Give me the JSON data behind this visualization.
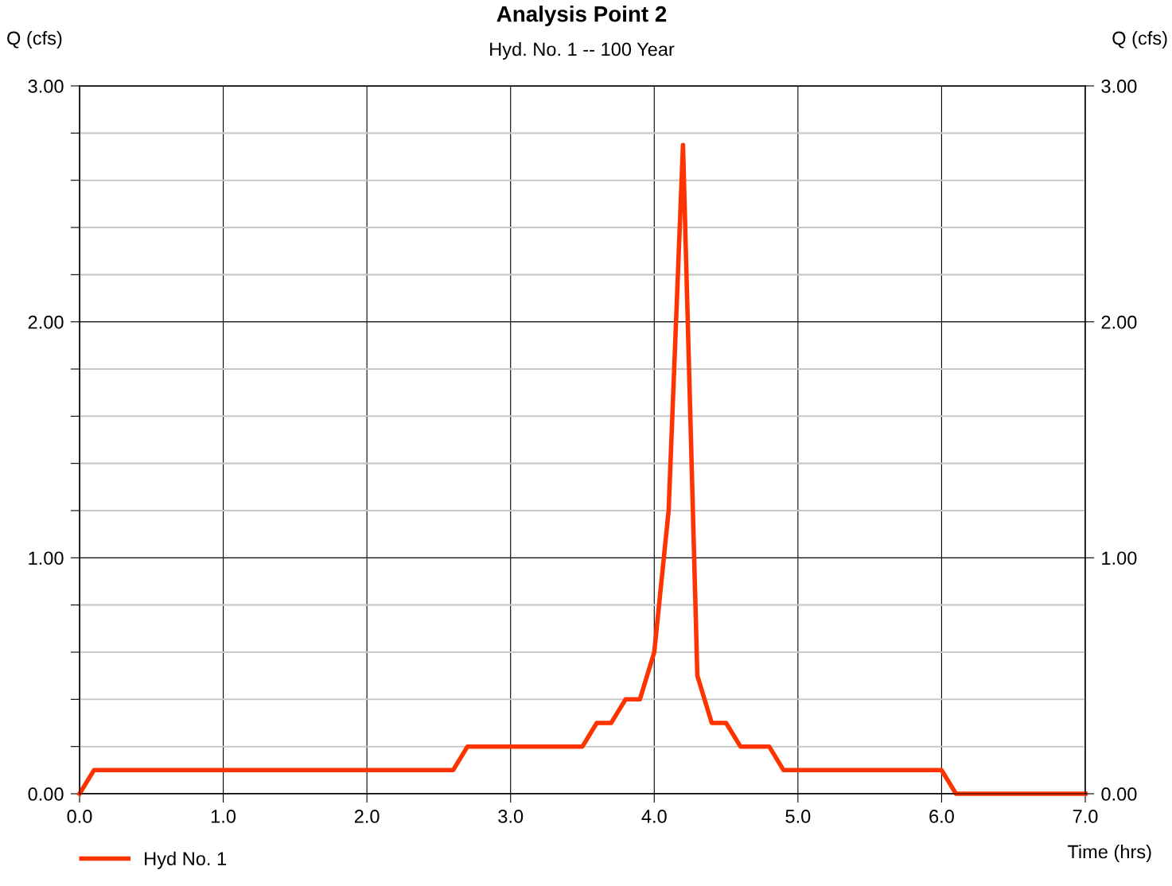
{
  "chart_data": {
    "type": "line",
    "title": "Analysis Point 2",
    "subtitle": "Hyd. No. 1 -- 100 Year",
    "xlabel": "Time (hrs)",
    "ylabel": "Q (cfs)",
    "y2label": "Q (cfs)",
    "x": [
      0.0,
      0.1,
      2.6,
      2.7,
      3.5,
      3.6,
      3.7,
      3.8,
      3.9,
      4.0,
      4.1,
      4.2,
      4.3,
      4.4,
      4.5,
      4.6,
      4.8,
      4.9,
      6.0,
      6.1,
      7.0
    ],
    "series": [
      {
        "name": "Hyd No. 1",
        "color": "#ff3300",
        "values": [
          0.0,
          0.1,
          0.1,
          0.2,
          0.2,
          0.3,
          0.3,
          0.4,
          0.4,
          0.6,
          1.2,
          2.75,
          0.5,
          0.3,
          0.3,
          0.2,
          0.2,
          0.1,
          0.1,
          0.0,
          0.0
        ]
      }
    ],
    "xlim": [
      0.0,
      7.0
    ],
    "xticks": [
      {
        "value": 0,
        "label": "0.0"
      },
      {
        "value": 1,
        "label": "1.0"
      },
      {
        "value": 2,
        "label": "2.0"
      },
      {
        "value": 3,
        "label": "3.0"
      },
      {
        "value": 4,
        "label": "4.0"
      },
      {
        "value": 5,
        "label": "5.0"
      },
      {
        "value": 6,
        "label": "6.0"
      },
      {
        "value": 7,
        "label": "7.0"
      }
    ],
    "ylim": [
      0.0,
      3.0
    ],
    "yticks": [
      {
        "value": 0,
        "label": "0.00"
      },
      {
        "value": 0.2,
        "label": null
      },
      {
        "value": 0.4,
        "label": null
      },
      {
        "value": 0.6,
        "label": null
      },
      {
        "value": 0.8,
        "label": null
      },
      {
        "value": 1,
        "label": "1.00"
      },
      {
        "value": 1.2,
        "label": null
      },
      {
        "value": 1.4,
        "label": null
      },
      {
        "value": 1.6,
        "label": null
      },
      {
        "value": 1.8,
        "label": null
      },
      {
        "value": 2,
        "label": "2.00"
      },
      {
        "value": 2.2,
        "label": null
      },
      {
        "value": 2.4,
        "label": null
      },
      {
        "value": 2.6,
        "label": null
      },
      {
        "value": 2.8,
        "label": null
      },
      {
        "value": 3,
        "label": "3.00"
      }
    ],
    "y2lim": [
      0.0,
      3.0
    ],
    "y2ticks": [
      {
        "value": 0,
        "label": "0.00"
      },
      {
        "value": 1,
        "label": "1.00"
      },
      {
        "value": 2,
        "label": "2.00"
      },
      {
        "value": 3,
        "label": "3.00"
      }
    ],
    "grid": true,
    "legend": "bottom left",
    "marker": "none",
    "line_style": "solid"
  }
}
